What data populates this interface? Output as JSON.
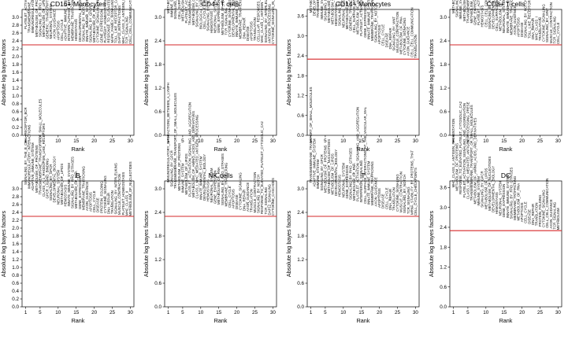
{
  "threshold_color": "#d62728",
  "chart_data": [
    {
      "type": "bar",
      "title": "CD16+ Monocytes",
      "xlabel": "Rank",
      "ylabel": "Absolute log bayes factors",
      "xlim": [
        0,
        31
      ],
      "ylim": [
        0,
        3.2
      ],
      "yticks": [
        "0.0",
        "0.2",
        "0.4",
        "0.6",
        "0.8",
        "1.0",
        "1.2",
        "1.4",
        "1.6",
        "1.8",
        "2.0",
        "2.2",
        "2.4",
        "2.6",
        "2.8",
        "3.0"
      ],
      "xticks": [
        "1",
        "5",
        "10",
        "15",
        "20",
        "25",
        "30"
      ],
      "threshold": 2.3,
      "categories": [
        "PLATELET_ACTIVATION_SIGNALING_AND_AGGREGATION",
        "TRANSMEMBRANE_TRANSPORT_OF_SMALL_MOLECULES",
        "IMMUNOREGULATORY_INTERACTIONS_BETWEEN_A_LYMPH",
        "METABOLISM_OF_PROTEINS",
        "SIGNALING_BY_RHO_GTPASES",
        "METABOLISM_OF_LIPIDS_AND_LIPOPROTEINS",
        "GENERIC_TRANSCRIPTION_PATHWAY",
        "NEURONAL_SYSTEM",
        "AXON_GUIDANCE",
        "APOPTOSIS",
        "CELL_CYCLE",
        "ADAPTIVE_IMMUNE_SYSTEM",
        "INTEGRIN_ALPHAIIB_BETA3_SIGNALING",
        "MEMBRANE_TRAFFICKING",
        "HEMOSTASIS",
        "DEVELOPMENTAL_BIOLOGY",
        "SIGNALING_BY_NOTCH",
        "INNATE_IMMUNE_SYSTEM",
        "SIGNALING_BY_GPCR",
        "METABOLISM_OF_RNA",
        "CYTOKINE_SIGNALING_IN_IMMUNE_SYSTEM",
        "GENE_EXPRESSION",
        "PLATELET_HOMEOSTASIS",
        "RESPONSE_TO_ELEVATED_PLATELET_CYTOSOLIC_CA2",
        "MAPK_FAMILY_SIGNALING",
        "TOLL_LIKE_RECEPTOR_CASCADES",
        "DAP12_INTERACTIONS",
        "MHC_CLASS_II_ANTIGEN_PRESENTATION",
        "TCR_SIGNALING",
        "CELL_CELL_COMMUNICATION"
      ],
      "values": [
        2.7,
        2.6,
        2.6,
        2.5,
        2.5,
        2.5,
        2.45,
        2.45,
        2.45,
        2.42,
        2.4,
        2.4,
        2.4,
        2.4,
        2.4,
        2.38,
        2.38,
        2.38,
        2.36,
        2.36,
        2.36,
        2.35,
        2.35,
        2.35,
        2.35,
        2.34,
        2.34,
        2.33,
        2.33,
        2.32
      ]
    },
    {
      "type": "bar",
      "title": "CD4+ T cells",
      "xlabel": "Rank",
      "ylabel": "Absolute log bayes factors",
      "xlim": [
        0,
        31
      ],
      "ylim": [
        0,
        3.2
      ],
      "yticks": [
        "0.0",
        "0.6",
        "1.2",
        "1.8",
        "2.4",
        "3.0"
      ],
      "xticks": [
        "1",
        "5",
        "10",
        "15",
        "20",
        "25",
        "30"
      ],
      "threshold": 2.3,
      "categories": [
        "METABOLISM_OF_PROTEINS",
        "IMMUNE_SYSTEM",
        "SIGNALING_BY_GPCR",
        "CELL_SURFACE_INTERACTIONS_AT_THE_VASCULAR_WAL",
        "METABOLISM_OF_LIPIDS",
        "PLATELET_ACTIVATION_SIGNALING_AND_AGGREGATION",
        "TRANSMEMBRANE_TRANSPORT_OF_SMALL_MOLECULES",
        "METABOLISM_OF_AMINO_ACIDS_AND_DERIVATIVES",
        "SIGNALING_BY_RHO_GTPASES",
        "BIOLOGICAL_OXIDATIONS",
        "CELL_CYCLE_CHECKPOINTS",
        "SIGNALING_BY_NOTCH",
        "HEMOSTASIS",
        "NEURONAL_SYSTEM",
        "GENE_EXPRESSION",
        "METABOLISM_OF_RNA",
        "TCR_SIGNALING",
        "CYTOKINE_SIGNALING",
        "DEVELOPMENTAL_BIOLOGY",
        "INNATE_IMMUNE_SYSTEM",
        "MEMBRANE_TRAFFICKING",
        "DNA_REPAIR",
        "DISEASE",
        "APOPTOSIS",
        "TRANSLATION",
        "CELLULAR_RESPONSES_TO_STRESS",
        "MHC_CLASS_I_ANTIGEN",
        "SIGNALING_BY_INTERLEUKINS",
        "ANTIGEN_PROCESSING",
        "CYTOKINE_SIGNALING_IN_IMMUNE_SYSTEM"
      ],
      "values": [
        3.1,
        3.0,
        2.95,
        2.95,
        2.9,
        2.85,
        2.8,
        2.8,
        2.75,
        2.7,
        2.7,
        2.65,
        2.6,
        2.6,
        2.6,
        2.55,
        2.55,
        2.5,
        2.5,
        2.5,
        2.45,
        2.45,
        2.4,
        2.4,
        2.4,
        2.38,
        2.36,
        2.35,
        2.34,
        2.32
      ]
    },
    {
      "type": "bar",
      "title": "CD14+ Monocytes",
      "xlabel": "Rank",
      "ylabel": "Absolute log bayes factors",
      "xlim": [
        0,
        31
      ],
      "ylim": [
        0,
        3.8
      ],
      "yticks": [
        "0.0",
        "0.6",
        "1.2",
        "1.8",
        "2.4",
        "3.0",
        "3.6"
      ],
      "xticks": [
        "1",
        "5",
        "10",
        "15",
        "20",
        "25",
        "30"
      ],
      "threshold": 2.3,
      "categories": [
        "METABOLISM_OF_LIPIDS_AND_LIPOPROTEINS",
        "DEVELOPMENTAL_BIOLOGY",
        "TRANSMEMBRANE_TRANSPORT_OF_SMALL_MOLECULES",
        "IMMUNE_SYSTEM",
        "SIGNALING_BY_GPCR",
        "METABOLISM_OF_PROTEINS",
        "METABOLISM_OF_NUCLEOTIDES",
        "HEMOSTASIS",
        "SIGNALING_BY_RHO_GTPASES",
        "NEURONAL_SYSTEM",
        "METABOLISM_OF_CARBOHYDRATES",
        "GENERIC_TRANSCRIPTION_PATHWAY",
        "CELL_SURFACE_INTERACTIONS",
        "METABOLISM_OF_AMINO_ACIDS_AND_DERIVATIVES",
        "PLATELET_ACTIVATION_SIGNALING_AND_AGGREGATION",
        "GENE_EXPRESSION",
        "INNATE_IMMUNE_SYSTEM",
        "MEMBRANE_TRAFFICKING",
        "SIGNALING_BY_NOTCH",
        "APOPTOSIS",
        "CELL_CYCLE",
        "DISEASE",
        "DNA_REPAIR",
        "SIGNALING_BY_WNT",
        "MUSCLE_CONTRACTION",
        "METABOLISM_OF_RNA",
        "CYTOKINE_SIGNALING",
        "AXON_GUIDANCE",
        "CELL_CELL_COMMUNICATION",
        "TRANSLATION"
      ],
      "values": [
        3.7,
        3.6,
        3.55,
        3.5,
        3.45,
        3.4,
        3.35,
        3.3,
        3.3,
        3.25,
        3.2,
        3.15,
        3.1,
        3.05,
        3.0,
        2.95,
        2.9,
        2.85,
        2.8,
        2.75,
        2.7,
        2.65,
        2.6,
        2.55,
        2.5,
        2.45,
        2.42,
        2.4,
        2.36,
        2.33
      ]
    },
    {
      "type": "bar",
      "title": "CD8+ T cells",
      "xlabel": "Rank",
      "ylabel": "Absolute log bayes factors",
      "xlim": [
        0,
        31
      ],
      "ylim": [
        0,
        3.2
      ],
      "yticks": [
        "0.0",
        "0.6",
        "1.2",
        "1.8",
        "2.4",
        "3.0"
      ],
      "xticks": [
        "1",
        "5",
        "10",
        "15",
        "20",
        "25",
        "30"
      ],
      "threshold": 2.3,
      "categories": [
        "METABOLISM_OF_PROTEINS",
        "SIGNALING_BY_GPCR",
        "IMMUNE_SYSTEM",
        "METABOLISM_OF_LIPIDS",
        "TRANSMEMBRANE_TRANSPORT_OF_SMALL_MOLECULES",
        "METABOLISM_OF_RNA",
        "GENE_EXPRESSION",
        "PLATELET_ACTIVATION_SIGNALING_AND_AGGREGATION",
        "HEMOSTASIS",
        "CELL_CELL_COMMUNICATION",
        "SIGNALING_BY_RHO_GTPASES",
        "DEVELOPMENTAL_BIOLOGY",
        "CELL_SURFACE_INTERACTIONS_AT_THE_VASCULAR_WAL",
        "METABOLISM_OF_CARBOHYDRATES",
        "NEURONAL_SYSTEM",
        "INNATE_IMMUNE_SYSTEM",
        "MEMBRANE_TRAFFICKING",
        "AXON_GUIDANCE",
        "APOPTOSIS",
        "DISEASE",
        "SIGNALING_BY_NOTCH",
        "TOLL_LIKE_RECEPTORS",
        "DNA_REPAIR",
        "MHC_CLASS_I",
        "TRANSLATION",
        "CYTOKINE_SIGNALING",
        "SIGNALING_BY_WNT",
        "MUSCLE_CONTRACTION",
        "TCR_SIGNALING",
        "CELL_CYCLE"
      ],
      "values": [
        3.1,
        3.0,
        2.95,
        2.9,
        2.85,
        2.85,
        2.8,
        2.8,
        2.75,
        2.75,
        2.7,
        2.7,
        2.65,
        2.65,
        2.6,
        2.6,
        2.55,
        2.55,
        2.5,
        2.5,
        2.48,
        2.46,
        2.44,
        2.42,
        2.4,
        2.38,
        2.36,
        2.34,
        2.33,
        2.32
      ]
    },
    {
      "type": "bar",
      "title": "B",
      "xlabel": "Rank",
      "ylabel": "Absolute log bayes factors",
      "xlim": [
        0,
        31
      ],
      "ylim": [
        0,
        3.2
      ],
      "yticks": [
        "0.0",
        "0.2",
        "0.4",
        "0.6",
        "0.8",
        "1.0",
        "1.2",
        "1.4",
        "1.6",
        "1.8",
        "2.0",
        "2.2",
        "2.4",
        "2.6",
        "2.8",
        "3.0"
      ],
      "xticks": [
        "1",
        "5",
        "10",
        "15",
        "20",
        "25",
        "30"
      ],
      "threshold": 2.3,
      "categories": [
        "SIGNALING_BY_THE_B_CELL_RECEPTOR_BCR",
        "IMMUNOREGULATORY_INTERACTIONS",
        "ADAPTIVE_IMMUNE_SYSTEM",
        "METABOLISM_OF_PROTEINS",
        "TRANSMEMBRANE_TRANSPORT_OF_SMALL_MOLECULES",
        "CLASS_A_1_RHODOPSIN_LIKE_RECEPTORS",
        "GPCR_LIGAND_BINDING",
        "SIGNALING_BY_GPCR",
        "DEVELOPMENTAL_BIOLOGY",
        "NEURONAL_SYSTEM",
        "METABOLISM_OF_LIPIDS",
        "HEMOSTASIS",
        "INNATE_IMMUNE_SYSTEM",
        "SIGNALING_BY_RHO_GTPASES",
        "METABOLISM_OF_RNA",
        "GENE_EXPRESSION",
        "MEMBRANE_TRAFFICKING",
        "AXON_GUIDANCE",
        "APOPTOSIS",
        "CELL_CYCLE",
        "DISEASE",
        "PROTEIN_FOLDING",
        "CYTOKINE_SIGNALING",
        "DNA_REPAIR",
        "TRANSLATION",
        "SIGNALING_BY_INTERLEUKINS",
        "MUSCLE_CONTRACTION",
        "PLATELET_HOMEOSTASIS",
        "MHC_CLASS_II",
        "METABOLISM_OF_NUCLEOTIDES"
      ],
      "values": [
        3.1,
        3.0,
        2.95,
        2.9,
        2.85,
        2.8,
        2.75,
        2.7,
        2.65,
        2.6,
        2.6,
        2.55,
        2.55,
        2.5,
        2.5,
        2.48,
        2.46,
        2.44,
        2.42,
        2.4,
        2.4,
        2.38,
        2.38,
        2.36,
        2.36,
        2.35,
        2.34,
        2.33,
        2.32,
        2.31
      ]
    },
    {
      "type": "bar",
      "title": "NK cells",
      "xlabel": "Rank",
      "ylabel": "Absolute log bayes factors",
      "xlim": [
        0,
        31
      ],
      "ylim": [
        0,
        3.2
      ],
      "yticks": [
        "0.0",
        "0.6",
        "1.2",
        "1.8",
        "2.4",
        "3.0"
      ],
      "xticks": [
        "1",
        "5",
        "10",
        "15",
        "20",
        "25",
        "30"
      ],
      "threshold": 2.3,
      "categories": [
        "IMMUNOREGULATORY_INTERACTIONS_BETWEEN_A_LYMPH",
        "SIGNALING_BY_GPCR",
        "TRANSMEMBRANE_TRANSPORT_OF_SMALL_MOLECULES",
        "METABOLISM_OF_PROTEINS",
        "IMMUNE_SYSTEM",
        "METABOLISM_OF_LIPIDS",
        "PLATELET_ACTIVATION_SIGNALING_AND_AGGREGATION",
        "METABOLISM_OF_AMINO_ACIDS_AND_DERIVATIVES",
        "CLASS_I_MHC_MEDIATED_ANTIGEN_PROCESSING",
        "INNATE_IMMUNE_SYSTEM",
        "DEVELOPMENTAL_BIOLOGY",
        "HEMOSTASIS",
        "NEURONAL_SYSTEM",
        "GENE_EXPRESSION",
        "METABOLISM_OF_RNA",
        "SIGNALING_BY_RHO_GTPASES",
        "MEMBRANE_TRAFFICKING",
        "CELL_CYCLE",
        "APOPTOSIS",
        "DISEASE",
        "CYTOKINE_SIGNALING",
        "DNA_REPAIR",
        "AXON_GUIDANCE",
        "TRANSLATION",
        "MUSCLE_CONTRACTION",
        "SIGNALING_BY_NOTCH",
        "RESPONSE_TO_ELEVATED_PLATELET_CYTOSOLIC_CA2",
        "TCR_SIGNALING",
        "DAP12_SIGNALING",
        "CYTOKINE_CASCADES"
      ],
      "values": [
        3.15,
        3.05,
        3.0,
        2.95,
        2.9,
        2.85,
        2.8,
        2.78,
        2.75,
        2.72,
        2.7,
        2.68,
        2.65,
        2.62,
        2.6,
        2.58,
        2.55,
        2.52,
        2.5,
        2.48,
        2.46,
        2.44,
        2.42,
        2.4,
        2.39,
        2.38,
        2.36,
        2.35,
        2.33,
        2.32
      ]
    },
    {
      "type": "bar",
      "title": "T",
      "xlabel": "Rank",
      "ylabel": "Absolute log bayes factors",
      "xlim": [
        0,
        31
      ],
      "ylim": [
        0,
        3.2
      ],
      "yticks": [
        "0.0",
        "0.6",
        "1.2",
        "1.8",
        "2.4",
        "3.0"
      ],
      "xticks": [
        "1",
        "5",
        "10",
        "15",
        "20",
        "25",
        "30"
      ],
      "threshold": 2.3,
      "categories": [
        "TRANSMEMBRANE_TRANSPORT_OF_SMALL_MOLECULES",
        "ADAPTIVE_IMMUNE_SYSTEM",
        "IMMUNE_SYSTEM",
        "SIGNALING_BY_GPCR",
        "METABOLISM_OF_PROTEINS",
        "METABOLISM_OF_NUCLEOTIDES",
        "METABOLISM_OF_LIPIDS",
        "DEVELOPMENTAL_BIOLOGY",
        "HEMOSTASIS",
        "NEURONAL_SYSTEM",
        "GENE_EXPRESSION",
        "SIGNALING_BY_RHO_GTPASES",
        "METABOLISM_OF_RNA",
        "PLATELET_ACTIVATION_SIGNALING_AND_AGGREGATION",
        "INTERFERON_SIGNALING",
        "CELL_SURFACE_INTERACTIONS_AT_THE_VASCULAR_WAL",
        "INNATE_IMMUNE_SYSTEM",
        "MEMBRANE_TRAFFICKING",
        "AXON_GUIDANCE",
        "APOPTOSIS",
        "DISEASE",
        "CELL_CYCLE",
        "DNA_REPAIR",
        "TRANSLATION",
        "CYTOKINE_SIGNALING",
        "MUSCLE_CONTRACTION",
        "SIGNALING_BY_NOTCH",
        "TCR_SIGNALING",
        "MRNA_STABILITY_BY_PROTEINS_THAT",
        "CELL_CYCLE_CHECKPOINTS"
      ],
      "values": [
        3.15,
        3.05,
        3.0,
        2.95,
        2.9,
        2.88,
        2.85,
        2.82,
        2.8,
        2.78,
        2.75,
        2.72,
        2.7,
        2.68,
        2.65,
        2.62,
        2.6,
        2.58,
        2.55,
        2.52,
        2.5,
        2.48,
        2.46,
        2.44,
        2.42,
        2.4,
        2.38,
        2.36,
        2.34,
        2.32
      ]
    },
    {
      "type": "bar",
      "title": "DC",
      "xlabel": "Rank",
      "ylabel": "Absolute log bayes factors",
      "xlim": [
        0,
        31
      ],
      "ylim": [
        0,
        3.8
      ],
      "yticks": [
        "0.0",
        "0.6",
        "1.2",
        "1.8",
        "2.4",
        "3.0",
        "3.6"
      ],
      "xticks": [
        "1",
        "5",
        "10",
        "15",
        "20",
        "25",
        "30"
      ],
      "threshold": 2.3,
      "categories": [
        "MHC_CLASS_II_ANTIGEN_PRESENTATION",
        "METABOLISM_OF_PROTEINS",
        "RESPONSE_TO_ELEVATED_PLATELET_CYTOSOLIC_CA2",
        "PLATELET_ACTIVATION_SIGNALING_AND_AGGREGATION",
        "CLASS_I_MHC_MEDIATED_ANTIGEN_PROCESSING_PRESE",
        "TRANSMEMBRANE_TRANSPORT_OF_SMALL_MOLECULES",
        "METABOLISM_OF_AMINO_ACIDS_AND_DERIVATIVES",
        "IMMUNE_SYSTEM",
        "SIGNALING_BY_GPCR",
        "METABOLISM_OF_LIPIDS",
        "METABOLISM_OF_NUCLEOTIDES",
        "DEVELOPMENTAL_BIOLOGY",
        "HEMOSTASIS",
        "NEURONAL_SYSTEM",
        "GENE_EXPRESSION",
        "INNATE_IMMUNE_SYSTEM",
        "SIGNALING_BY_RHO_GTPASES",
        "MEMBRANE_TRAFFICKING",
        "METABOLISM_OF_RNA",
        "APOPTOSIS",
        "CELL_CYCLE",
        "DISEASE",
        "DNA_REPAIR",
        "TRANSLATION",
        "PROTEIN_FOLDING",
        "CYTOKINE_SIGNALING",
        "CELL_CELL_COMMUNICATION",
        "AXON_GUIDANCE",
        "TCR_SIGNALING",
        "METABOLISM"
      ],
      "values": [
        3.6,
        3.5,
        3.4,
        3.3,
        3.25,
        3.2,
        3.1,
        3.05,
        3.0,
        2.95,
        2.9,
        2.85,
        2.8,
        2.75,
        2.7,
        2.68,
        2.65,
        2.62,
        2.6,
        2.56,
        2.52,
        2.5,
        2.47,
        2.44,
        2.42,
        2.4,
        2.38,
        2.36,
        2.34,
        2.32
      ]
    }
  ]
}
